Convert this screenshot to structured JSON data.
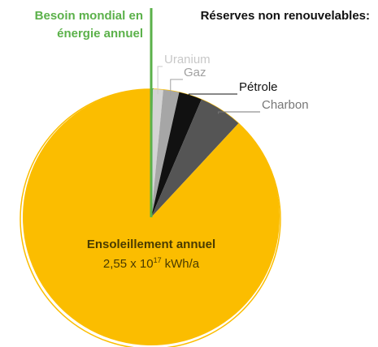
{
  "chart_data": {
    "type": "pie",
    "title": "Réserves non renouvelables:",
    "series": [
      {
        "name": [
          "Besoin mondial en",
          "énergie annuel"
        ],
        "color": "#5bb14a",
        "value": 0.2
      },
      {
        "name": "Uranium",
        "color": "#d4d4d4",
        "value": 1.3
      },
      {
        "name": "Gaz",
        "color": "#a6a6a6",
        "value": 2.0
      },
      {
        "name": "Pétrole",
        "color": "#111111",
        "value": 2.9
      },
      {
        "name": "Charbon",
        "color": "#555555",
        "value": 5.5
      },
      {
        "name": "Ensoleillement annuel",
        "color": "#fbbd00",
        "value": 88.1,
        "value_label": {
          "mantissa": "2,55 x 10",
          "exponent": "17",
          "unit": "kWh/a"
        }
      }
    ]
  }
}
